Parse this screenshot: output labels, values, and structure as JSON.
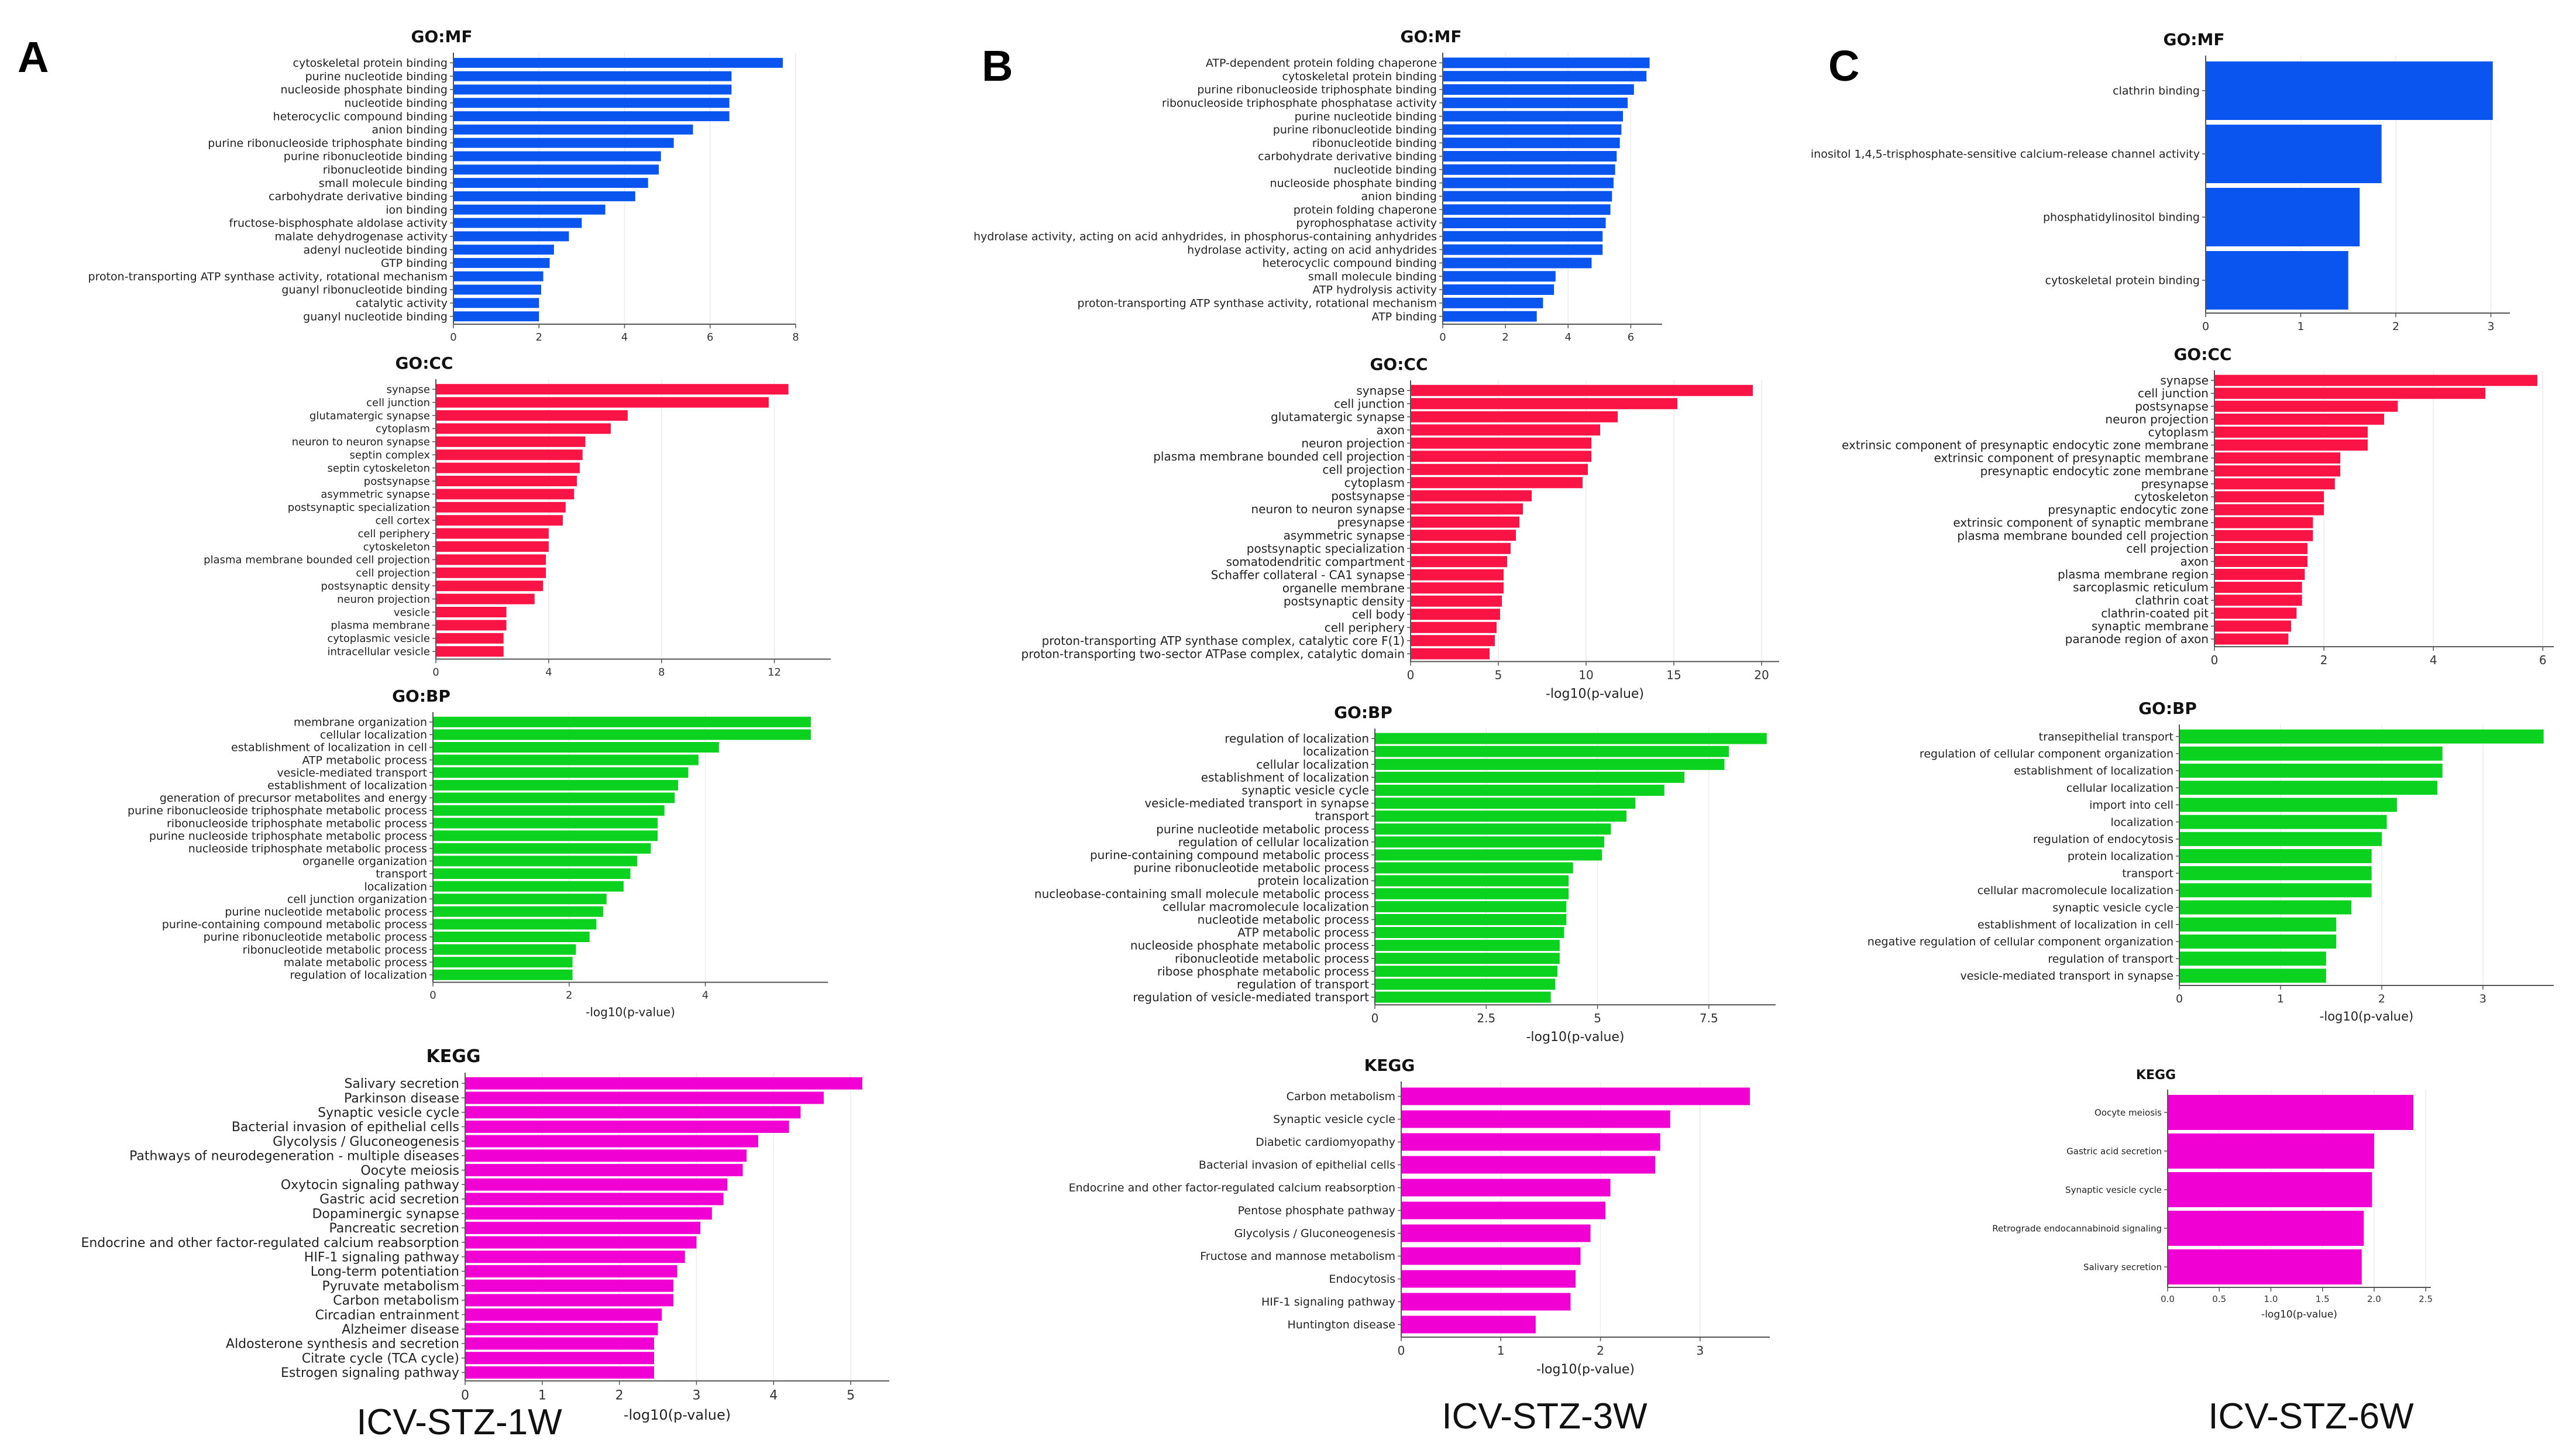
{
  "panel_labels": [
    "A",
    "B",
    "C"
  ],
  "captions": [
    "ICV-STZ-1W",
    "ICV-STZ-3W",
    "ICV-STZ-6W"
  ],
  "colors": {
    "MF": "#0a55f0",
    "CC": "#fa1446",
    "BP": "#0ad21e",
    "KEGG": "#f000d2",
    "grid": "#ececec",
    "axis": "#555555"
  },
  "chart_data": [
    {
      "id": "A-MF",
      "type": "bar",
      "orientation": "horizontal",
      "title": "GO:MF",
      "xlabel": "",
      "xlim": [
        0,
        8
      ],
      "xticks": [
        0,
        2,
        4,
        6,
        8
      ],
      "grid": true,
      "categories": [
        "cytoskeletal protein binding",
        "purine nucleotide binding",
        "nucleoside phosphate binding",
        "nucleotide binding",
        "heterocyclic compound binding",
        "anion binding",
        "purine ribonucleoside triphosphate binding",
        "purine ribonucleotide binding",
        "ribonucleotide binding",
        "small molecule binding",
        "carbohydrate derivative binding",
        "ion binding",
        "fructose-bisphosphate aldolase activity",
        "malate dehydrogenase activity",
        "adenyl nucleotide binding",
        "GTP binding",
        "proton-transporting ATP synthase activity, rotational mechanism",
        "guanyl ribonucleotide binding",
        "catalytic activity",
        "guanyl nucleotide binding"
      ],
      "values": [
        7.7,
        6.5,
        6.5,
        6.45,
        6.45,
        5.6,
        5.15,
        4.85,
        4.8,
        4.55,
        4.25,
        3.55,
        3.0,
        2.7,
        2.35,
        2.25,
        2.1,
        2.05,
        2.0,
        2.0
      ]
    },
    {
      "id": "A-CC",
      "type": "bar",
      "orientation": "horizontal",
      "title": "GO:CC",
      "xlabel": "",
      "xlim": [
        0,
        14
      ],
      "xticks": [
        0,
        4,
        8,
        12
      ],
      "grid": true,
      "categories": [
        "synapse",
        "cell junction",
        "glutamatergic synapse",
        "cytoplasm",
        "neuron to neuron synapse",
        "septin complex",
        "septin cytoskeleton",
        "postsynapse",
        "asymmetric synapse",
        "postsynaptic specialization",
        "cell cortex",
        "cell periphery",
        "cytoskeleton",
        "plasma membrane bounded cell projection",
        "cell projection",
        "postsynaptic density",
        "neuron projection",
        "vesicle",
        "plasma membrane",
        "cytoplasmic vesicle",
        "intracellular vesicle"
      ],
      "values": [
        12.5,
        11.8,
        6.8,
        6.2,
        5.3,
        5.2,
        5.1,
        5.0,
        4.9,
        4.6,
        4.5,
        4.0,
        4.0,
        3.9,
        3.9,
        3.8,
        3.5,
        2.5,
        2.5,
        2.4,
        2.4
      ]
    },
    {
      "id": "A-BP",
      "type": "bar",
      "orientation": "horizontal",
      "title": "GO:BP",
      "xlabel": "-log10(p-value)",
      "xlim": [
        0,
        5.8
      ],
      "xticks": [
        0,
        2,
        4
      ],
      "grid": true,
      "categories": [
        "membrane organization",
        "cellular localization",
        "establishment of localization in cell",
        "ATP metabolic process",
        "vesicle-mediated transport",
        "establishment of localization",
        "generation of precursor metabolites and energy",
        "purine ribonucleoside triphosphate metabolic process",
        "ribonucleoside triphosphate metabolic process",
        "purine nucleoside triphosphate metabolic process",
        "nucleoside triphosphate metabolic process",
        "organelle organization",
        "transport",
        "localization",
        "cell junction organization",
        "purine nucleotide metabolic process",
        "purine-containing compound metabolic process",
        "purine ribonucleotide metabolic process",
        "ribonucleotide metabolic process",
        "malate metabolic process",
        "regulation of localization"
      ],
      "values": [
        5.55,
        5.55,
        4.2,
        3.9,
        3.75,
        3.6,
        3.55,
        3.4,
        3.3,
        3.3,
        3.2,
        3.0,
        2.9,
        2.8,
        2.55,
        2.5,
        2.4,
        2.3,
        2.1,
        2.05,
        2.05
      ]
    },
    {
      "id": "A-KEGG",
      "type": "bar",
      "orientation": "horizontal",
      "title": "KEGG",
      "xlabel": "-log10(p-value)",
      "xlim": [
        0,
        5.5
      ],
      "xticks": [
        0,
        1,
        2,
        3,
        4,
        5
      ],
      "grid": true,
      "categories": [
        "Salivary secretion",
        "Parkinson disease",
        "Synaptic vesicle cycle",
        "Bacterial invasion of epithelial cells",
        "Glycolysis / Gluconeogenesis",
        "Pathways of neurodegeneration - multiple diseases",
        "Oocyte meiosis",
        "Oxytocin signaling pathway",
        "Gastric acid secretion",
        "Dopaminergic synapse",
        "Pancreatic secretion",
        "Endocrine and other factor-regulated calcium reabsorption",
        "HIF-1 signaling pathway",
        "Long-term potentiation",
        "Pyruvate metabolism",
        "Carbon metabolism",
        "Circadian entrainment",
        "Alzheimer disease",
        "Aldosterone synthesis and secretion",
        "Citrate cycle (TCA cycle)",
        "Estrogen signaling pathway"
      ],
      "values": [
        5.15,
        4.65,
        4.35,
        4.2,
        3.8,
        3.65,
        3.6,
        3.4,
        3.35,
        3.2,
        3.05,
        3.0,
        2.85,
        2.75,
        2.7,
        2.7,
        2.55,
        2.5,
        2.45,
        2.45,
        2.45
      ]
    },
    {
      "id": "B-MF",
      "type": "bar",
      "orientation": "horizontal",
      "title": "GO:MF",
      "xlabel": "",
      "xlim": [
        0,
        7
      ],
      "xticks": [
        0,
        2,
        4,
        6
      ],
      "grid": true,
      "categories": [
        "ATP-dependent protein folding chaperone",
        "cytoskeletal protein binding",
        "purine ribonucleoside triphosphate binding",
        "ribonucleoside triphosphate phosphatase activity",
        "purine nucleotide binding",
        "purine ribonucleotide binding",
        "ribonucleotide binding",
        "carbohydrate derivative binding",
        "nucleotide binding",
        "nucleoside phosphate binding",
        "anion binding",
        "protein folding chaperone",
        "pyrophosphatase activity",
        "hydrolase activity, acting on acid anhydrides, in phosphorus-containing anhydrides",
        "hydrolase activity, acting on acid anhydrides",
        "heterocyclic compound binding",
        "small molecule binding",
        "ATP hydrolysis activity",
        "proton-transporting ATP synthase activity, rotational mechanism",
        "ATP binding"
      ],
      "values": [
        6.6,
        6.5,
        6.1,
        5.9,
        5.75,
        5.7,
        5.65,
        5.55,
        5.5,
        5.45,
        5.4,
        5.35,
        5.2,
        5.1,
        5.1,
        4.75,
        3.6,
        3.55,
        3.2,
        3.0
      ]
    },
    {
      "id": "B-CC",
      "type": "bar",
      "orientation": "horizontal",
      "title": "GO:CC",
      "xlabel": "-log10(p-value)",
      "xlim": [
        0,
        21
      ],
      "xticks": [
        0,
        5,
        10,
        15,
        20
      ],
      "grid": true,
      "categories": [
        "synapse",
        "cell junction",
        "glutamatergic synapse",
        "axon",
        "neuron projection",
        "plasma membrane bounded cell projection",
        "cell projection",
        "cytoplasm",
        "postsynapse",
        "neuron to neuron synapse",
        "presynapse",
        "asymmetric synapse",
        "postsynaptic specialization",
        "somatodendritic compartment",
        "Schaffer collateral - CA1 synapse",
        "organelle membrane",
        "postsynaptic density",
        "cell body",
        "cell periphery",
        "proton-transporting ATP synthase complex, catalytic core F(1)",
        "proton-transporting two-sector ATPase complex, catalytic domain"
      ],
      "values": [
        19.5,
        15.2,
        11.8,
        10.8,
        10.3,
        10.3,
        10.1,
        9.8,
        6.9,
        6.4,
        6.2,
        6.0,
        5.7,
        5.5,
        5.3,
        5.3,
        5.2,
        5.1,
        4.9,
        4.8,
        4.5
      ]
    },
    {
      "id": "B-BP",
      "type": "bar",
      "orientation": "horizontal",
      "title": "GO:BP",
      "xlabel": "-log10(p-value)",
      "xlim": [
        0,
        9
      ],
      "xticks": [
        0.0,
        2.5,
        5.0,
        7.5
      ],
      "grid": true,
      "categories": [
        "regulation of localization",
        "localization",
        "cellular localization",
        "establishment of localization",
        "synaptic vesicle cycle",
        "vesicle-mediated transport in synapse",
        "transport",
        "purine nucleotide metabolic process",
        "regulation of cellular localization",
        "purine-containing compound metabolic process",
        "purine ribonucleotide metabolic process",
        "protein localization",
        "nucleobase-containing small molecule metabolic process",
        "cellular macromolecule localization",
        "nucleotide metabolic process",
        "ATP metabolic process",
        "nucleoside phosphate metabolic process",
        "ribonucleotide metabolic process",
        "ribose phosphate metabolic process",
        "regulation of transport",
        "regulation of vesicle-mediated transport"
      ],
      "values": [
        8.8,
        7.95,
        7.85,
        6.95,
        6.5,
        5.85,
        5.65,
        5.3,
        5.15,
        5.1,
        4.45,
        4.35,
        4.35,
        4.3,
        4.3,
        4.25,
        4.15,
        4.15,
        4.1,
        4.05,
        3.95
      ]
    },
    {
      "id": "B-KEGG",
      "type": "bar",
      "orientation": "horizontal",
      "title": "KEGG",
      "xlabel": "-log10(p-value)",
      "xlim": [
        0,
        3.7
      ],
      "xticks": [
        0,
        1,
        2,
        3
      ],
      "grid": true,
      "categories": [
        "Carbon metabolism",
        "Synaptic vesicle cycle",
        "Diabetic cardiomyopathy",
        "Bacterial invasion of epithelial cells",
        "Endocrine and other factor-regulated calcium reabsorption",
        "Pentose phosphate pathway",
        "Glycolysis / Gluconeogenesis",
        "Fructose and mannose metabolism",
        "Endocytosis",
        "HIF-1 signaling pathway",
        "Huntington disease"
      ],
      "values": [
        3.5,
        2.7,
        2.6,
        2.55,
        2.1,
        2.05,
        1.9,
        1.8,
        1.75,
        1.7,
        1.35
      ]
    },
    {
      "id": "C-MF",
      "type": "bar",
      "orientation": "horizontal",
      "title": "GO:MF",
      "xlabel": "",
      "xlim": [
        0,
        3.2
      ],
      "xticks": [
        0,
        1,
        2,
        3
      ],
      "grid": true,
      "categories": [
        "clathrin binding",
        "inositol 1,4,5-trisphosphate-sensitive calcium-release channel activity",
        "phosphatidylinositol binding",
        "cytoskeletal protein binding"
      ],
      "values": [
        3.02,
        1.85,
        1.62,
        1.5
      ]
    },
    {
      "id": "C-CC",
      "type": "bar",
      "orientation": "horizontal",
      "title": "GO:CC",
      "xlabel": "",
      "xlim": [
        0,
        6.2
      ],
      "xticks": [
        0,
        2,
        4,
        6
      ],
      "grid": true,
      "categories": [
        "synapse",
        "cell junction",
        "postsynapse",
        "neuron projection",
        "cytoplasm",
        "extrinsic component of presynaptic endocytic zone membrane",
        "extrinsic component of presynaptic membrane",
        "presynaptic endocytic zone membrane",
        "presynapse",
        "cytoskeleton",
        "presynaptic endocytic zone",
        "extrinsic component of synaptic membrane",
        "plasma membrane bounded cell projection",
        "cell projection",
        "axon",
        "plasma membrane region",
        "sarcoplasmic reticulum",
        "clathrin coat",
        "clathrin-coated pit",
        "synaptic membrane",
        "paranode region of axon"
      ],
      "values": [
        5.9,
        4.95,
        3.35,
        3.1,
        2.8,
        2.8,
        2.3,
        2.3,
        2.2,
        2.0,
        2.0,
        1.8,
        1.8,
        1.7,
        1.7,
        1.65,
        1.6,
        1.6,
        1.5,
        1.4,
        1.35
      ]
    },
    {
      "id": "C-BP",
      "type": "bar",
      "orientation": "horizontal",
      "title": "GO:BP",
      "xlabel": "-log10(p-value)",
      "xlim": [
        0,
        3.7
      ],
      "xticks": [
        0,
        1,
        2,
        3
      ],
      "grid": true,
      "categories": [
        "transepithelial transport",
        "regulation of cellular component organization",
        "establishment of localization",
        "cellular localization",
        "import into cell",
        "localization",
        "regulation of endocytosis",
        "protein localization",
        "transport",
        "cellular macromolecule localization",
        "synaptic vesicle cycle",
        "establishment of localization in cell",
        "negative regulation of cellular component organization",
        "regulation of transport",
        "vesicle-mediated transport in synapse"
      ],
      "values": [
        3.6,
        2.6,
        2.6,
        2.55,
        2.15,
        2.05,
        2.0,
        1.9,
        1.9,
        1.9,
        1.7,
        1.55,
        1.55,
        1.45,
        1.45
      ]
    },
    {
      "id": "C-KEGG",
      "type": "bar",
      "orientation": "horizontal",
      "title": "KEGG",
      "xlabel": "-log10(p-value)",
      "xlim": [
        0,
        2.55
      ],
      "xticks": [
        "0.0",
        "0.5",
        "1.0",
        "1.5",
        "2.0",
        "2.5"
      ],
      "grid": true,
      "categories": [
        "Oocyte meiosis",
        "Gastric acid secretion",
        "Synaptic vesicle cycle",
        "Retrograde endocannabinoid signaling",
        "Salivary secretion"
      ],
      "values": [
        2.38,
        2.0,
        1.98,
        1.9,
        1.88
      ]
    }
  ]
}
